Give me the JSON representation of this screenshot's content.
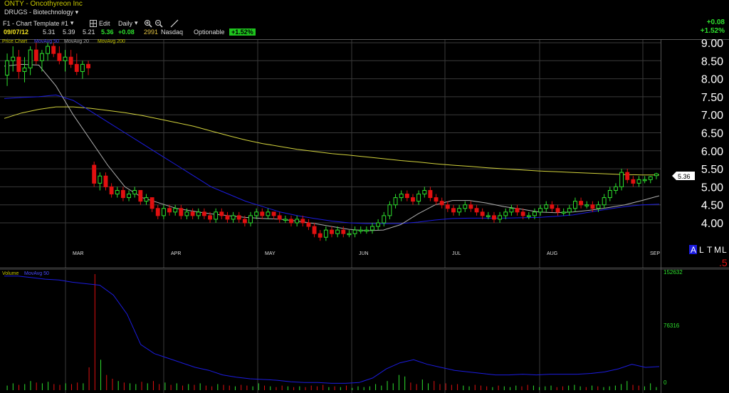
{
  "header": {
    "title": "ONTY - Oncothyreon Inc",
    "sector": "DRUGS - Biotechnology",
    "template_label": "F1 - Chart Template #1",
    "edit_label": "Edit",
    "period_label": "Daily",
    "quote": {
      "date": "09/07/12",
      "open": "5.31",
      "high": "5.39",
      "low": "5.21",
      "close": "5.36",
      "change": "+0.08",
      "volume": "2991",
      "exchange": "Nasdaq",
      "optionable": "Optionable",
      "pct_badge": "+1.52%"
    },
    "right_change": "+0.08",
    "right_pct": "+1.52%"
  },
  "price_panel": {
    "legend": [
      "Price Chart",
      "MovAvg 50",
      "MovAvg 20",
      "MovAvg 200"
    ],
    "current_price_label": "5.36",
    "scale_buttons": [
      "A",
      "L",
      "T",
      "M",
      "L"
    ],
    "scale_step": ".5"
  },
  "volume_panel": {
    "legend": [
      "Volume",
      "MovAvg 50"
    ]
  },
  "colors": {
    "up": "#2ee02e",
    "down": "#e01010",
    "ma20": "#b0b0b0",
    "ma50": "#1c1ce0",
    "ma200": "#d2d23c",
    "grid": "#3a3a3a",
    "axis_text": "#ffffff"
  },
  "chart_data": [
    {
      "type": "candlestick",
      "ylim": [
        3.5,
        9.2
      ],
      "y_ticks": [
        "9.00",
        "8.50",
        "8.00",
        "7.50",
        "7.00",
        "6.50",
        "6.00",
        "5.50",
        "5.00",
        "4.50",
        "4.00"
      ],
      "x_month_labels": [
        "MAR",
        "APR",
        "MAY",
        "JUN",
        "JUL",
        "AUG",
        "SEP"
      ],
      "candles": [
        {
          "o": 8.1,
          "h": 8.7,
          "l": 7.8,
          "c": 8.5
        },
        {
          "o": 8.5,
          "h": 8.9,
          "l": 8.2,
          "c": 8.6
        },
        {
          "o": 8.6,
          "h": 8.8,
          "l": 8.0,
          "c": 8.2
        },
        {
          "o": 8.2,
          "h": 8.6,
          "l": 7.9,
          "c": 8.3
        },
        {
          "o": 8.3,
          "h": 8.9,
          "l": 8.1,
          "c": 8.8
        },
        {
          "o": 8.8,
          "h": 9.0,
          "l": 8.4,
          "c": 8.5
        },
        {
          "o": 8.5,
          "h": 8.8,
          "l": 8.2,
          "c": 8.7
        },
        {
          "o": 8.7,
          "h": 9.0,
          "l": 8.5,
          "c": 8.9
        },
        {
          "o": 8.9,
          "h": 9.0,
          "l": 8.6,
          "c": 8.7
        },
        {
          "o": 8.7,
          "h": 8.9,
          "l": 8.4,
          "c": 8.5
        },
        {
          "o": 8.5,
          "h": 8.8,
          "l": 8.2,
          "c": 8.6
        },
        {
          "o": 8.6,
          "h": 8.8,
          "l": 8.3,
          "c": 8.4
        },
        {
          "o": 8.4,
          "h": 8.7,
          "l": 8.1,
          "c": 8.2
        },
        {
          "o": 8.2,
          "h": 8.5,
          "l": 8.0,
          "c": 8.4
        },
        {
          "o": 8.4,
          "h": 8.5,
          "l": 8.1,
          "c": 8.3
        },
        {
          "o": 5.6,
          "h": 5.7,
          "l": 5.0,
          "c": 5.1
        },
        {
          "o": 5.1,
          "h": 5.4,
          "l": 4.9,
          "c": 5.3
        },
        {
          "o": 5.3,
          "h": 5.4,
          "l": 4.9,
          "c": 5.0
        },
        {
          "o": 5.0,
          "h": 5.1,
          "l": 4.7,
          "c": 4.8
        },
        {
          "o": 4.8,
          "h": 5.0,
          "l": 4.7,
          "c": 4.9
        },
        {
          "o": 4.9,
          "h": 5.0,
          "l": 4.6,
          "c": 4.7
        },
        {
          "o": 4.7,
          "h": 4.9,
          "l": 4.6,
          "c": 4.8
        },
        {
          "o": 4.8,
          "h": 5.0,
          "l": 4.7,
          "c": 4.9
        },
        {
          "o": 4.9,
          "h": 4.9,
          "l": 4.5,
          "c": 4.6
        },
        {
          "o": 4.6,
          "h": 4.8,
          "l": 4.5,
          "c": 4.7
        },
        {
          "o": 4.7,
          "h": 4.7,
          "l": 4.3,
          "c": 4.4
        },
        {
          "o": 4.4,
          "h": 4.5,
          "l": 4.1,
          "c": 4.2
        },
        {
          "o": 4.2,
          "h": 4.5,
          "l": 4.1,
          "c": 4.4
        },
        {
          "o": 4.4,
          "h": 4.5,
          "l": 4.2,
          "c": 4.3
        },
        {
          "o": 4.3,
          "h": 4.5,
          "l": 4.2,
          "c": 4.4
        },
        {
          "o": 4.4,
          "h": 4.5,
          "l": 4.1,
          "c": 4.2
        },
        {
          "o": 4.2,
          "h": 4.4,
          "l": 4.1,
          "c": 4.3
        },
        {
          "o": 4.3,
          "h": 4.4,
          "l": 4.1,
          "c": 4.2
        },
        {
          "o": 4.2,
          "h": 4.4,
          "l": 4.1,
          "c": 4.3
        },
        {
          "o": 4.3,
          "h": 4.4,
          "l": 4.1,
          "c": 4.2
        },
        {
          "o": 4.2,
          "h": 4.3,
          "l": 4.0,
          "c": 4.1
        },
        {
          "o": 4.1,
          "h": 4.4,
          "l": 4.0,
          "c": 4.3
        },
        {
          "o": 4.3,
          "h": 4.4,
          "l": 4.1,
          "c": 4.2
        },
        {
          "o": 4.2,
          "h": 4.3,
          "l": 4.0,
          "c": 4.1
        },
        {
          "o": 4.1,
          "h": 4.3,
          "l": 4.0,
          "c": 4.2
        },
        {
          "o": 4.2,
          "h": 4.3,
          "l": 4.0,
          "c": 4.1
        },
        {
          "o": 4.1,
          "h": 4.2,
          "l": 3.9,
          "c": 4.0
        },
        {
          "o": 4.0,
          "h": 4.3,
          "l": 3.9,
          "c": 4.2
        },
        {
          "o": 4.2,
          "h": 4.4,
          "l": 4.1,
          "c": 4.3
        },
        {
          "o": 4.3,
          "h": 4.4,
          "l": 4.1,
          "c": 4.2
        },
        {
          "o": 4.2,
          "h": 4.4,
          "l": 4.1,
          "c": 4.3
        },
        {
          "o": 4.3,
          "h": 4.3,
          "l": 4.1,
          "c": 4.2
        },
        {
          "o": 4.2,
          "h": 4.3,
          "l": 4.0,
          "c": 4.1
        },
        {
          "o": 4.1,
          "h": 4.2,
          "l": 4.0,
          "c": 4.1
        },
        {
          "o": 4.1,
          "h": 4.2,
          "l": 3.9,
          "c": 4.0
        },
        {
          "o": 4.0,
          "h": 4.2,
          "l": 3.9,
          "c": 4.1
        },
        {
          "o": 4.1,
          "h": 4.2,
          "l": 3.9,
          "c": 4.0
        },
        {
          "o": 4.0,
          "h": 4.1,
          "l": 3.8,
          "c": 3.9
        },
        {
          "o": 3.9,
          "h": 4.0,
          "l": 3.6,
          "c": 3.7
        },
        {
          "o": 3.7,
          "h": 3.8,
          "l": 3.5,
          "c": 3.6
        },
        {
          "o": 3.6,
          "h": 3.9,
          "l": 3.5,
          "c": 3.8
        },
        {
          "o": 3.8,
          "h": 3.9,
          "l": 3.6,
          "c": 3.7
        },
        {
          "o": 3.7,
          "h": 3.9,
          "l": 3.6,
          "c": 3.8
        },
        {
          "o": 3.8,
          "h": 3.9,
          "l": 3.6,
          "c": 3.7
        },
        {
          "o": 3.7,
          "h": 3.8,
          "l": 3.6,
          "c": 3.7
        },
        {
          "o": 3.7,
          "h": 3.9,
          "l": 3.6,
          "c": 3.8
        },
        {
          "o": 3.8,
          "h": 3.9,
          "l": 3.7,
          "c": 3.8
        },
        {
          "o": 3.8,
          "h": 3.9,
          "l": 3.7,
          "c": 3.8
        },
        {
          "o": 3.8,
          "h": 4.0,
          "l": 3.7,
          "c": 3.9
        },
        {
          "o": 3.9,
          "h": 4.1,
          "l": 3.8,
          "c": 4.0
        },
        {
          "o": 4.0,
          "h": 4.3,
          "l": 3.9,
          "c": 4.2
        },
        {
          "o": 4.2,
          "h": 4.6,
          "l": 4.1,
          "c": 4.5
        },
        {
          "o": 4.5,
          "h": 4.8,
          "l": 4.4,
          "c": 4.7
        },
        {
          "o": 4.7,
          "h": 4.9,
          "l": 4.6,
          "c": 4.8
        },
        {
          "o": 4.8,
          "h": 4.9,
          "l": 4.6,
          "c": 4.7
        },
        {
          "o": 4.7,
          "h": 4.8,
          "l": 4.5,
          "c": 4.6
        },
        {
          "o": 4.6,
          "h": 4.9,
          "l": 4.5,
          "c": 4.8
        },
        {
          "o": 4.8,
          "h": 5.0,
          "l": 4.7,
          "c": 4.9
        },
        {
          "o": 4.9,
          "h": 5.0,
          "l": 4.6,
          "c": 4.7
        },
        {
          "o": 4.7,
          "h": 4.8,
          "l": 4.5,
          "c": 4.6
        },
        {
          "o": 4.6,
          "h": 4.7,
          "l": 4.4,
          "c": 4.5
        },
        {
          "o": 4.5,
          "h": 4.6,
          "l": 4.3,
          "c": 4.4
        },
        {
          "o": 4.4,
          "h": 4.5,
          "l": 4.2,
          "c": 4.3
        },
        {
          "o": 4.3,
          "h": 4.5,
          "l": 4.2,
          "c": 4.4
        },
        {
          "o": 4.4,
          "h": 4.6,
          "l": 4.3,
          "c": 4.5
        },
        {
          "o": 4.5,
          "h": 4.6,
          "l": 4.3,
          "c": 4.4
        },
        {
          "o": 4.4,
          "h": 4.5,
          "l": 4.2,
          "c": 4.3
        },
        {
          "o": 4.3,
          "h": 4.4,
          "l": 4.1,
          "c": 4.2
        },
        {
          "o": 4.2,
          "h": 4.3,
          "l": 4.1,
          "c": 4.2
        },
        {
          "o": 4.2,
          "h": 4.3,
          "l": 4.0,
          "c": 4.1
        },
        {
          "o": 4.1,
          "h": 4.3,
          "l": 4.0,
          "c": 4.2
        },
        {
          "o": 4.2,
          "h": 4.4,
          "l": 4.1,
          "c": 4.3
        },
        {
          "o": 4.3,
          "h": 4.5,
          "l": 4.2,
          "c": 4.4
        },
        {
          "o": 4.4,
          "h": 4.5,
          "l": 4.2,
          "c": 4.3
        },
        {
          "o": 4.3,
          "h": 4.4,
          "l": 4.1,
          "c": 4.2
        },
        {
          "o": 4.2,
          "h": 4.3,
          "l": 4.1,
          "c": 4.2
        },
        {
          "o": 4.2,
          "h": 4.4,
          "l": 4.1,
          "c": 4.3
        },
        {
          "o": 4.3,
          "h": 4.5,
          "l": 4.2,
          "c": 4.4
        },
        {
          "o": 4.4,
          "h": 4.6,
          "l": 4.3,
          "c": 4.5
        },
        {
          "o": 4.5,
          "h": 4.6,
          "l": 4.3,
          "c": 4.4
        },
        {
          "o": 4.4,
          "h": 4.5,
          "l": 4.2,
          "c": 4.3
        },
        {
          "o": 4.3,
          "h": 4.4,
          "l": 4.2,
          "c": 4.3
        },
        {
          "o": 4.3,
          "h": 4.5,
          "l": 4.2,
          "c": 4.4
        },
        {
          "o": 4.4,
          "h": 4.7,
          "l": 4.3,
          "c": 4.6
        },
        {
          "o": 4.6,
          "h": 4.7,
          "l": 4.4,
          "c": 4.5
        },
        {
          "o": 4.5,
          "h": 4.6,
          "l": 4.4,
          "c": 4.5
        },
        {
          "o": 4.5,
          "h": 4.6,
          "l": 4.3,
          "c": 4.4
        },
        {
          "o": 4.4,
          "h": 4.6,
          "l": 4.3,
          "c": 4.5
        },
        {
          "o": 4.5,
          "h": 4.8,
          "l": 4.4,
          "c": 4.7
        },
        {
          "o": 4.7,
          "h": 5.0,
          "l": 4.6,
          "c": 4.9
        },
        {
          "o": 4.9,
          "h": 5.1,
          "l": 4.8,
          "c": 5.0
        },
        {
          "o": 5.0,
          "h": 5.5,
          "l": 4.9,
          "c": 5.4
        },
        {
          "o": 5.4,
          "h": 5.5,
          "l": 5.1,
          "c": 5.2
        },
        {
          "o": 5.2,
          "h": 5.3,
          "l": 5.0,
          "c": 5.1
        },
        {
          "o": 5.1,
          "h": 5.3,
          "l": 5.0,
          "c": 5.2
        },
        {
          "o": 5.2,
          "h": 5.3,
          "l": 5.1,
          "c": 5.2
        },
        {
          "o": 5.2,
          "h": 5.3,
          "l": 5.1,
          "c": 5.28
        },
        {
          "o": 5.31,
          "h": 5.39,
          "l": 5.21,
          "c": 5.36
        }
      ],
      "ma20": [
        8.35,
        8.4,
        8.38,
        7.8,
        7.0,
        6.3,
        5.6,
        5.0,
        4.7,
        4.55,
        4.4,
        4.32,
        4.25,
        4.2,
        4.15,
        4.12,
        4.1,
        4.05,
        3.98,
        3.9,
        3.82,
        3.78,
        3.8,
        3.95,
        4.25,
        4.5,
        4.62,
        4.62,
        4.55,
        4.45,
        4.38,
        4.3,
        4.28,
        4.3,
        4.35,
        4.42,
        4.5,
        4.62,
        4.75
      ],
      "ma50": [
        7.45,
        7.48,
        7.5,
        7.55,
        7.4,
        7.1,
        6.8,
        6.5,
        6.2,
        5.9,
        5.6,
        5.3,
        5.0,
        4.8,
        4.6,
        4.45,
        4.3,
        4.2,
        4.12,
        4.05,
        4.0,
        3.98,
        3.98,
        3.98,
        4.02,
        4.08,
        4.12,
        4.13,
        4.13,
        4.13,
        4.14,
        4.15,
        4.18,
        4.22,
        4.3,
        4.38,
        4.45,
        4.5,
        4.52
      ],
      "ma200": [
        6.9,
        7.05,
        7.15,
        7.22,
        7.22,
        7.18,
        7.12,
        7.06,
        6.98,
        6.88,
        6.78,
        6.68,
        6.55,
        6.42,
        6.3,
        6.2,
        6.12,
        6.04,
        5.98,
        5.92,
        5.88,
        5.83,
        5.78,
        5.73,
        5.69,
        5.64,
        5.6,
        5.57,
        5.53,
        5.5,
        5.47,
        5.44,
        5.42,
        5.4,
        5.38,
        5.36,
        5.34,
        5.33,
        5.33
      ]
    },
    {
      "type": "bar",
      "title": "Volume",
      "y_ticks": [
        "152632",
        "76316",
        "0"
      ],
      "ylim": [
        0,
        152632
      ],
      "x_month_labels": [
        "MAR",
        "APR",
        "MAY",
        "JUN",
        "JUL",
        "AUG",
        "SEP"
      ],
      "values": [
        6000,
        9000,
        7000,
        8000,
        12000,
        10000,
        9000,
        11000,
        8000,
        7000,
        9000,
        8000,
        10000,
        9000,
        30000,
        152632,
        40000,
        20000,
        15000,
        12000,
        10000,
        9000,
        8000,
        11000,
        9000,
        12000,
        8000,
        10000,
        7000,
        9000,
        6000,
        8000,
        7000,
        9000,
        6000,
        5000,
        8000,
        7000,
        6000,
        5000,
        7000,
        6000,
        5000,
        9000,
        6000,
        5000,
        4000,
        6000,
        5000,
        4000,
        5000,
        4000,
        6000,
        5000,
        7000,
        4000,
        5000,
        4000,
        6000,
        3000,
        5000,
        4000,
        5000,
        8000,
        6000,
        12000,
        9000,
        20000,
        18000,
        10000,
        8000,
        14000,
        9000,
        12000,
        8000,
        9000,
        7000,
        8000,
        6000,
        5000,
        7000,
        6000,
        5000,
        4000,
        6000,
        5000,
        4000,
        6000,
        5000,
        7000,
        6000,
        4000,
        5000,
        6000,
        4000,
        5000,
        6000,
        7000,
        5000,
        4000,
        6000,
        5000,
        4000,
        5000,
        6000,
        8000,
        12000,
        7000,
        6000,
        5000,
        9000,
        4000
      ],
      "ma50": [
        150000,
        150000,
        148000,
        146000,
        145000,
        142000,
        140000,
        138000,
        125000,
        100000,
        60000,
        48000,
        42000,
        36000,
        30000,
        26000,
        20000,
        17000,
        15000,
        14000,
        13000,
        11000,
        10000,
        10000,
        9000,
        9000,
        10000,
        16000,
        28000,
        36000,
        40000,
        34000,
        30000,
        26000,
        24000,
        22000,
        20000,
        20000,
        21000,
        20000,
        21000,
        21000,
        21000,
        22000,
        24000,
        28000,
        34000,
        30000,
        31000
      ]
    }
  ]
}
